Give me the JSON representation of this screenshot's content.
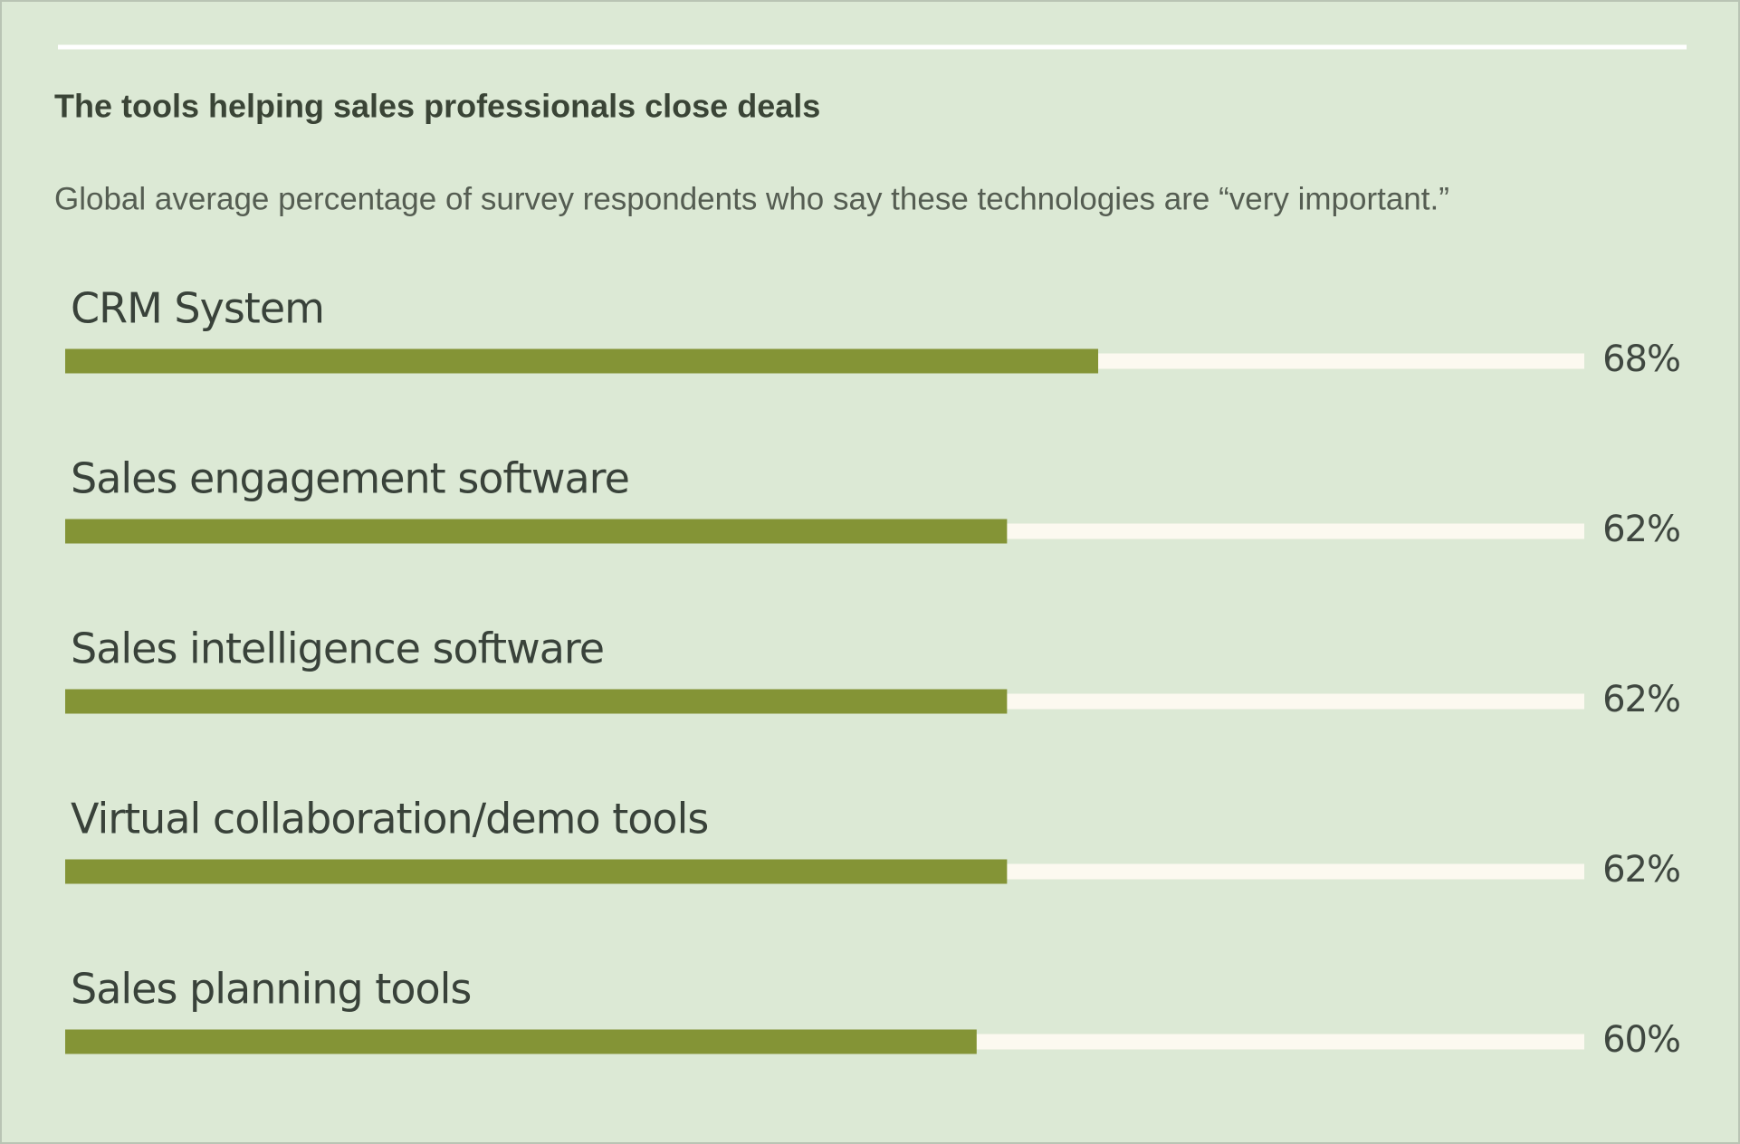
{
  "chart_data": {
    "type": "bar",
    "orientation": "horizontal",
    "title": "The tools helping sales professionals close deals",
    "subtitle": "Global average percentage of survey respondents who say these technologies are “very important.”",
    "categories": [
      "CRM System",
      "Sales engagement software",
      "Sales intelligence software",
      "Virtual collaboration/demo tools",
      "Sales planning tools"
    ],
    "values": [
      68,
      62,
      62,
      62,
      60
    ],
    "value_labels": [
      "68%",
      "62%",
      "62%",
      "62%",
      "60%"
    ],
    "xlim": [
      0,
      100
    ],
    "color": "#849436",
    "track_color": "#fcf9f0"
  }
}
